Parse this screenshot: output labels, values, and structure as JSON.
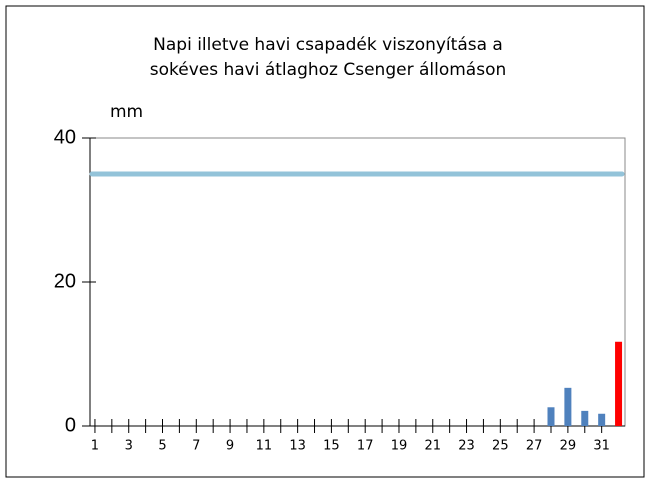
{
  "chart_data": {
    "type": "bar",
    "title": [
      "Napi illetve havi csapadék viszonyítása a",
      "sokéves havi átlaghoz Csenger állomáson"
    ],
    "y_label": "mm",
    "categories": [
      "1",
      null,
      "3",
      null,
      "5",
      null,
      "7",
      null,
      "9",
      null,
      "11",
      null,
      "13",
      null,
      "15",
      null,
      "17",
      null,
      "19",
      null,
      "21",
      null,
      "23",
      null,
      "25",
      null,
      "27",
      null,
      "29",
      null,
      "31",
      null
    ],
    "values": [
      0,
      0,
      0,
      0,
      0,
      0,
      0,
      0,
      0,
      0,
      0,
      0,
      0,
      0,
      0,
      0,
      0,
      0,
      0,
      0,
      0,
      0,
      0,
      0,
      0,
      0,
      0,
      2.6,
      5.3,
      2.1,
      1.7,
      11.7
    ],
    "colors": [
      "#4f81bd",
      "#4f81bd",
      "#4f81bd",
      "#4f81bd",
      "#4f81bd",
      "#4f81bd",
      "#4f81bd",
      "#4f81bd",
      "#4f81bd",
      "#4f81bd",
      "#4f81bd",
      "#4f81bd",
      "#4f81bd",
      "#4f81bd",
      "#4f81bd",
      "#4f81bd",
      "#4f81bd",
      "#4f81bd",
      "#4f81bd",
      "#4f81bd",
      "#4f81bd",
      "#4f81bd",
      "#4f81bd",
      "#4f81bd",
      "#4f81bd",
      "#4f81bd",
      "#4f81bd",
      "#4f81bd",
      "#4f81bd",
      "#4f81bd",
      "#4f81bd",
      "#ff0000"
    ],
    "reference_line": {
      "value": 35,
      "color": "#93c3d9"
    },
    "ylim": [
      0,
      40
    ],
    "yticks": [
      0,
      20,
      40
    ]
  }
}
